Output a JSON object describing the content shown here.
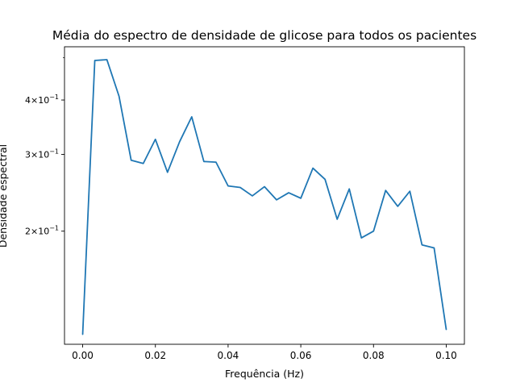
{
  "chart_data": {
    "type": "line",
    "title": "Média do espectro de densidade de glicose para todos os pacientes",
    "xlabel": "Frequência (Hz)",
    "ylabel": "Densidade espectral",
    "xlim": [
      -0.005,
      0.105
    ],
    "ylim": [
      0.11,
      0.53
    ],
    "yscale": "log",
    "grid": false,
    "x_ticks": [
      {
        "value": 0.0,
        "label": "0.00"
      },
      {
        "value": 0.02,
        "label": "0.02"
      },
      {
        "value": 0.04,
        "label": "0.04"
      },
      {
        "value": 0.06,
        "label": "0.06"
      },
      {
        "value": 0.08,
        "label": "0.08"
      },
      {
        "value": 0.1,
        "label": "0.10"
      }
    ],
    "y_ticks": [
      {
        "value": 0.2,
        "base": "2",
        "exp": "−1"
      },
      {
        "value": 0.3,
        "base": "3",
        "exp": "−1"
      },
      {
        "value": 0.4,
        "base": "4",
        "exp": "−1"
      }
    ],
    "y_minor_ticks": [
      0.5
    ],
    "series": [
      {
        "color": "#1f77b4",
        "x": [
          0.0,
          0.003333,
          0.006667,
          0.01,
          0.013333,
          0.016667,
          0.02,
          0.023333,
          0.026667,
          0.03,
          0.033333,
          0.036667,
          0.04,
          0.043333,
          0.046667,
          0.05,
          0.053333,
          0.056667,
          0.06,
          0.063333,
          0.066667,
          0.07,
          0.073333,
          0.076667,
          0.08,
          0.083333,
          0.086667,
          0.09,
          0.093333,
          0.096667,
          0.1
        ],
        "y": [
          0.116,
          0.493,
          0.495,
          0.408,
          0.291,
          0.286,
          0.325,
          0.273,
          0.321,
          0.366,
          0.289,
          0.288,
          0.254,
          0.252,
          0.241,
          0.253,
          0.236,
          0.245,
          0.238,
          0.279,
          0.263,
          0.213,
          0.25,
          0.193,
          0.2,
          0.248,
          0.228,
          0.247,
          0.186,
          0.183,
          0.119
        ]
      }
    ]
  }
}
